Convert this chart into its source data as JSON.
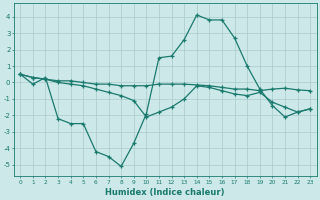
{
  "xlabel": "Humidex (Indice chaleur)",
  "xlim": [
    -0.5,
    23.5
  ],
  "ylim": [
    -5.7,
    4.8
  ],
  "yticks": [
    -5,
    -4,
    -3,
    -2,
    -1,
    0,
    1,
    2,
    3,
    4
  ],
  "xticks": [
    0,
    1,
    2,
    3,
    4,
    5,
    6,
    7,
    8,
    9,
    10,
    11,
    12,
    13,
    14,
    15,
    16,
    17,
    18,
    19,
    20,
    21,
    22,
    23
  ],
  "bg_color": "#cce8e8",
  "line_color": "#1a7a6e",
  "grid_color": "#aacccc",
  "series1": {
    "x": [
      0,
      1,
      2,
      3,
      4,
      5,
      6,
      7,
      8,
      9,
      10,
      11,
      12,
      13,
      14,
      15,
      16,
      17,
      18,
      19,
      20,
      21,
      22,
      23
    ],
    "y": [
      0.5,
      -0.1,
      0.3,
      -2.2,
      -2.5,
      -2.5,
      -4.2,
      -4.5,
      -5.1,
      -3.7,
      -1.9,
      1.5,
      1.6,
      2.6,
      4.1,
      3.8,
      3.8,
      2.7,
      1.0,
      -0.4,
      -1.4,
      -2.1,
      -1.8,
      -1.6
    ]
  },
  "series2": {
    "x": [
      0,
      1,
      2,
      3,
      4,
      5,
      6,
      7,
      8,
      9,
      10,
      11,
      12,
      13,
      14,
      15,
      16,
      17,
      18,
      19,
      20,
      21,
      22,
      23
    ],
    "y": [
      0.5,
      0.3,
      0.2,
      0.1,
      0.1,
      0.0,
      -0.1,
      -0.1,
      -0.2,
      -0.2,
      -0.2,
      -0.1,
      -0.1,
      -0.1,
      -0.15,
      -0.2,
      -0.3,
      -0.4,
      -0.4,
      -0.5,
      -0.4,
      -0.35,
      -0.45,
      -0.5
    ]
  },
  "series3": {
    "x": [
      0,
      1,
      2,
      3,
      4,
      5,
      6,
      7,
      8,
      9,
      10,
      11,
      12,
      13,
      14,
      15,
      16,
      17,
      18,
      19,
      20,
      21,
      22,
      23
    ],
    "y": [
      0.5,
      0.3,
      0.2,
      0.0,
      -0.1,
      -0.2,
      -0.4,
      -0.6,
      -0.8,
      -1.1,
      -2.1,
      -1.8,
      -1.5,
      -1.0,
      -0.2,
      -0.3,
      -0.5,
      -0.7,
      -0.8,
      -0.6,
      -1.2,
      -1.5,
      -1.8,
      -1.6
    ]
  }
}
